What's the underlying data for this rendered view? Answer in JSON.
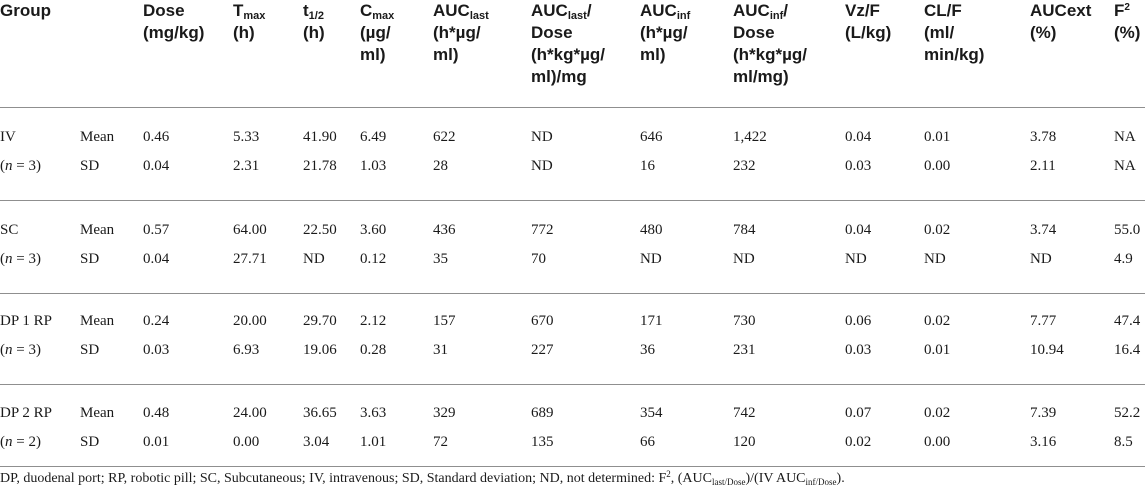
{
  "table": {
    "headers": {
      "group": "Group",
      "dose": [
        "Dose",
        "(mg/kg)"
      ],
      "tmax": {
        "main": "T",
        "sub": "max",
        "unit": "(h)"
      },
      "thalf": {
        "main": "t",
        "sub": "1/2",
        "unit": "(h)"
      },
      "cmax": {
        "main": "C",
        "sub": "max",
        "unit1": "(µg/",
        "unit2": "ml)"
      },
      "auclast": {
        "main": "AUC",
        "sub": "last",
        "unit1": "(h*µg/",
        "unit2": "ml)"
      },
      "auclast_dose": {
        "main": "AUC",
        "sub": "last",
        "post": "/",
        "l2": "Dose",
        "l3": "(h*kg*µg/",
        "l4": "ml)/mg"
      },
      "aucinf": {
        "main": "AUC",
        "sub": "inf",
        "unit1": "(h*µg/",
        "unit2": "ml)"
      },
      "aucinf_dose": {
        "main": "AUC",
        "sub": "inf",
        "post": "/",
        "l2": "Dose",
        "l3": "(h*kg*µg/",
        "l4": "ml/mg)"
      },
      "vzf": [
        "Vz/F",
        "(L/kg)"
      ],
      "clf": [
        "CL/F",
        "(ml/",
        "min/kg)"
      ],
      "aucext": [
        "AUCext",
        "(%)"
      ],
      "f": {
        "main": "F",
        "sup": "2",
        "unit": "(%)"
      }
    },
    "groups": [
      {
        "name": "IV",
        "n_prefix": "(",
        "n_italic": "n",
        "n_suffix": " = 3)",
        "rows": [
          {
            "stat": "Mean",
            "values": [
              "0.46",
              "5.33",
              "41.90",
              "6.49",
              "622",
              "ND",
              "646",
              "1,422",
              "0.04",
              "0.01",
              "3.78",
              "NA"
            ]
          },
          {
            "stat": "SD",
            "values": [
              "0.04",
              "2.31",
              "21.78",
              "1.03",
              "28",
              "ND",
              "16",
              "232",
              "0.03",
              "0.00",
              "2.11",
              "NA"
            ]
          }
        ]
      },
      {
        "name": "SC",
        "n_prefix": "(",
        "n_italic": "n",
        "n_suffix": " = 3)",
        "rows": [
          {
            "stat": "Mean",
            "values": [
              "0.57",
              "64.00",
              "22.50",
              "3.60",
              "436",
              "772",
              "480",
              "784",
              "0.04",
              "0.02",
              "3.74",
              "55.0"
            ]
          },
          {
            "stat": "SD",
            "values": [
              "0.04",
              "27.71",
              "ND",
              "0.12",
              "35",
              "70",
              "ND",
              "ND",
              "ND",
              "ND",
              "ND",
              "4.9"
            ]
          }
        ]
      },
      {
        "name": "DP 1 RP",
        "n_prefix": "(",
        "n_italic": "n",
        "n_suffix": " = 3)",
        "rows": [
          {
            "stat": "Mean",
            "values": [
              "0.24",
              "20.00",
              "29.70",
              "2.12",
              "157",
              "670",
              "171",
              "730",
              "0.06",
              "0.02",
              "7.77",
              "47.4"
            ]
          },
          {
            "stat": "SD",
            "values": [
              "0.03",
              "6.93",
              "19.06",
              "0.28",
              "31",
              "227",
              "36",
              "231",
              "0.03",
              "0.01",
              "10.94",
              "16.4"
            ]
          }
        ]
      },
      {
        "name": "DP 2 RP",
        "n_prefix": "(",
        "n_italic": "n",
        "n_suffix": " = 2)",
        "rows": [
          {
            "stat": "Mean",
            "values": [
              "0.48",
              "24.00",
              "36.65",
              "3.63",
              "329",
              "689",
              "354",
              "742",
              "0.07",
              "0.02",
              "7.39",
              "52.2"
            ]
          },
          {
            "stat": "SD",
            "values": [
              "0.01",
              "0.00",
              "3.04",
              "1.01",
              "72",
              "135",
              "66",
              "120",
              "0.02",
              "0.00",
              "3.16",
              "8.5"
            ]
          }
        ]
      }
    ]
  },
  "footnote": {
    "text": "DP, duodenal port; RP, robotic pill; SC, Subcutaneous; IV, intravenous; SD, Standard deviation; ND, not determined: F",
    "sup": "2",
    "mid1": ", (AUC",
    "sub1": "last/Dose",
    "mid2": ")/(IV AUC",
    "sub2": "inf/Dose",
    "end": ")."
  }
}
